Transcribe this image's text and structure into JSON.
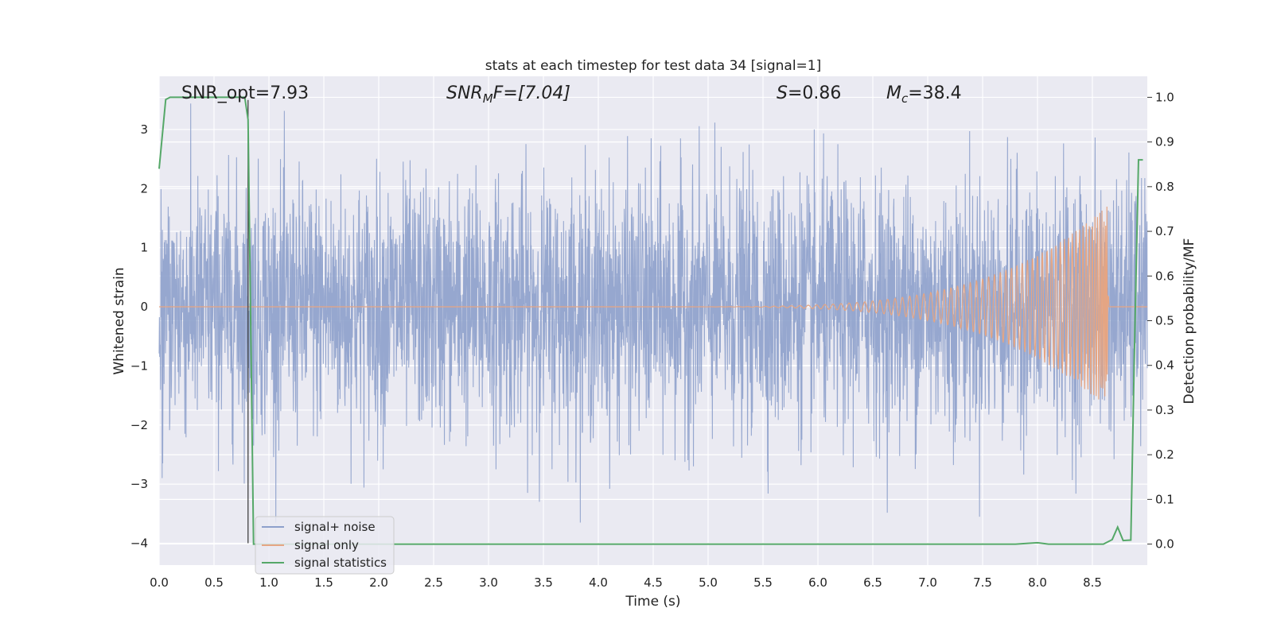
{
  "chart_data": {
    "type": "line",
    "title": "stats at each timestep for test data 34 [signal=1]",
    "xlabel": "Time (s)",
    "ylabel_left": "Whitened strain",
    "ylabel_right": "Detection probability/MF",
    "xlim": [
      0.0,
      9.0
    ],
    "ylim_left": [
      -4.37,
      3.9
    ],
    "ylim_right": [
      -0.047,
      1.047
    ],
    "grid": true,
    "legend_position": "bottom-left",
    "x_ticks": [
      "0.0",
      "0.5",
      "1.0",
      "1.5",
      "2.0",
      "2.5",
      "3.0",
      "3.5",
      "4.0",
      "4.5",
      "5.0",
      "5.5",
      "6.0",
      "6.5",
      "7.0",
      "7.5",
      "8.0",
      "8.5"
    ],
    "x_tick_values": [
      0.0,
      0.5,
      1.0,
      1.5,
      2.0,
      2.5,
      3.0,
      3.5,
      4.0,
      4.5,
      5.0,
      5.5,
      6.0,
      6.5,
      7.0,
      7.5,
      8.0,
      8.5
    ],
    "y_ticks_left": [
      "3",
      "2",
      "1",
      "0",
      "−1",
      "−2",
      "−3",
      "−4"
    ],
    "y_tick_values_left": [
      3,
      2,
      1,
      0,
      -1,
      -2,
      -3,
      -4
    ],
    "y_ticks_right": [
      "1.0",
      "0.9",
      "0.8",
      "0.7",
      "0.6",
      "0.5",
      "0.4",
      "0.3",
      "0.2",
      "0.1",
      "0.0"
    ],
    "y_tick_values_right": [
      1.0,
      0.9,
      0.8,
      0.7,
      0.6,
      0.5,
      0.4,
      0.3,
      0.2,
      0.1,
      0.0
    ],
    "annotations": {
      "snr_opt": "SNR_opt=7.93",
      "snr_mf_base": "SNR",
      "snr_mf_sub": "M",
      "snr_mf_rest": "F=[7.04]",
      "s_var": "S",
      "s_val": "=0.86",
      "mc_var": "M",
      "mc_sub": "c",
      "mc_val": "=38.4"
    },
    "vertical_marker_x": 0.81,
    "series": [
      {
        "name": "signal+ noise",
        "axis": "left",
        "color": "#8da0cb",
        "style": "dense noise, amplitude approx. ±2 with peaks to ±3.5",
        "envelope_max": 3.5,
        "envelope_min": -3.65
      },
      {
        "name": "signal only",
        "axis": "left",
        "color": "#e5a583",
        "style": "chirp, growing from 0 near 4.3 s to ±1.7 at 8.63 s, then 0",
        "chirp_start": 4.3,
        "chirp_peak_time": 8.63,
        "chirp_peak_amplitude": 1.7
      },
      {
        "name": "signal statistics",
        "axis": "right",
        "color": "#55a868",
        "x": [
          0.0,
          0.06,
          0.1,
          0.2,
          0.3,
          0.4,
          0.5,
          0.6,
          0.7,
          0.78,
          0.81,
          0.86,
          0.9,
          1.0,
          2.0,
          3.0,
          4.0,
          5.0,
          6.0,
          7.0,
          7.8,
          8.0,
          8.1,
          8.3,
          8.6,
          8.68,
          8.73,
          8.78,
          8.85,
          8.88,
          8.92,
          8.96
        ],
        "values": [
          0.84,
          0.995,
          1.0,
          1.0,
          1.0,
          1.0,
          1.0,
          1.0,
          1.0,
          1.0,
          0.95,
          0.0,
          0.0,
          0.0,
          0.0,
          0.0,
          0.0,
          0.0,
          0.0,
          0.0,
          0.0,
          0.003,
          0.0,
          0.0,
          0.0,
          0.01,
          0.038,
          0.008,
          0.009,
          0.4,
          0.86,
          0.86
        ]
      }
    ]
  }
}
